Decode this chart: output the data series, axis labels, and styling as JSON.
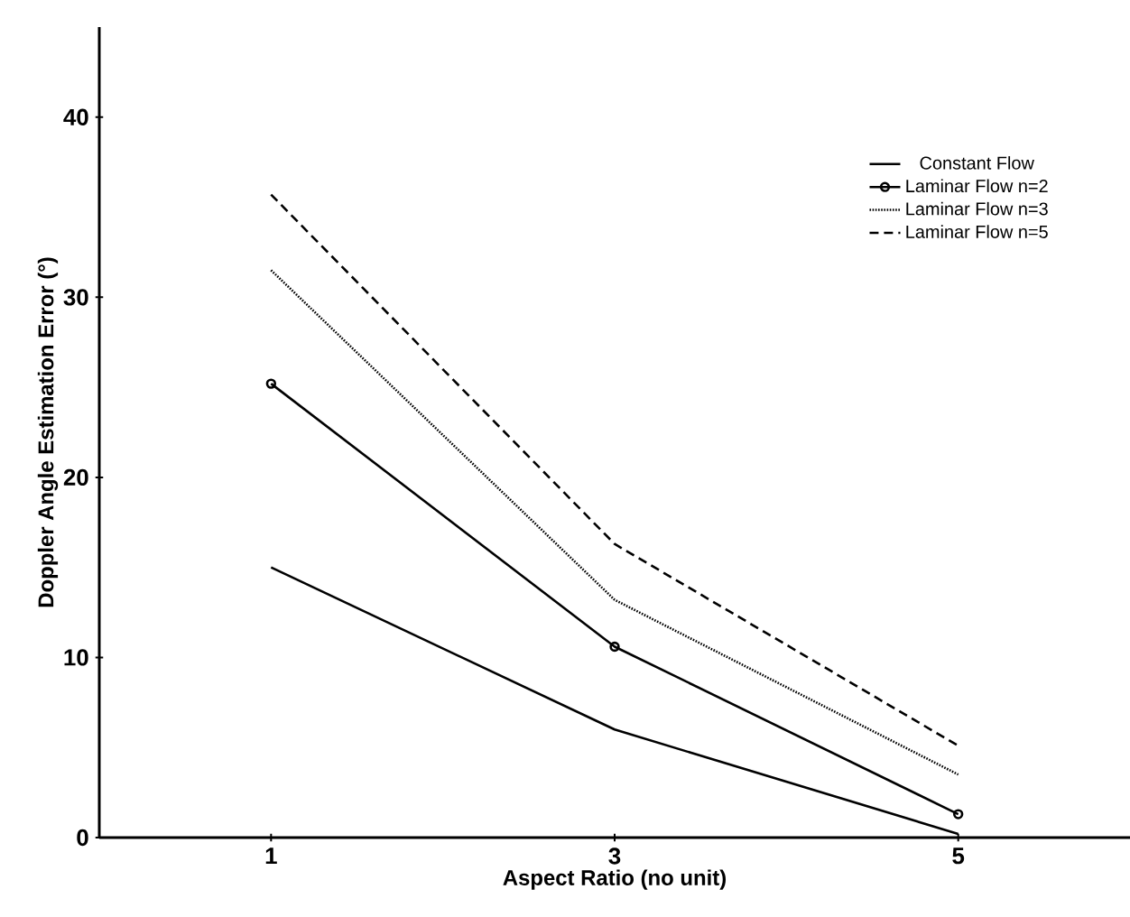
{
  "chart_data": {
    "type": "line",
    "xlabel": "Aspect Ratio (no unit)",
    "ylabel": "Doppler Angle Estimation Error (°)",
    "x": [
      1,
      3,
      5
    ],
    "xlim": [
      0,
      6
    ],
    "ylim": [
      0,
      45
    ],
    "xticks": [
      1,
      3,
      5
    ],
    "yticks": [
      0,
      10,
      20,
      30,
      40
    ],
    "grid": false,
    "legend": "top right",
    "series": [
      {
        "name": "Constant Flow",
        "color": "#000000",
        "values": [
          15,
          6,
          0.2
        ],
        "line_style": "solid",
        "marker": "none"
      },
      {
        "name": "Laminar Flow n=2",
        "color": "#000000",
        "values": [
          25.2,
          10.6,
          1.3
        ],
        "line_style": "solid",
        "marker": "circle"
      },
      {
        "name": "Laminar Flow n=3",
        "color": "#000000",
        "values": [
          31.5,
          13.2,
          3.5
        ],
        "line_style": "dotted",
        "marker": "none"
      },
      {
        "name": "Laminar Flow n=5",
        "color": "#000000",
        "values": [
          35.7,
          16.3,
          5.1
        ],
        "line_style": "dashed",
        "marker": "none"
      }
    ]
  }
}
